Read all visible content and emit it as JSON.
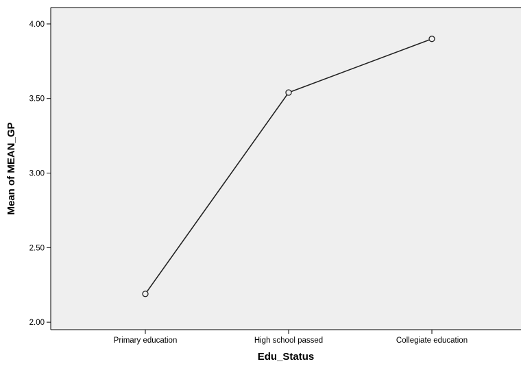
{
  "chart_data": {
    "type": "line",
    "title": "",
    "xlabel": "Edu_Status",
    "ylabel": "Mean of MEAN_GP",
    "categories": [
      "Primary education",
      "High school passed",
      "Collegiate education"
    ],
    "series": [
      {
        "values": [
          2.19,
          3.54,
          3.9
        ]
      }
    ],
    "ylim": [
      1.95,
      4.11
    ],
    "yticks": [
      2.0,
      2.5,
      3.0,
      3.5,
      4.0
    ],
    "ytick_labels": [
      "2.00",
      "2.50",
      "3.00",
      "3.50",
      "4.00"
    ],
    "grid": false,
    "legend": "none",
    "marker": "open-circle",
    "colors": {
      "plot_background": "#efefef",
      "line": "#222222",
      "axis": "#000000"
    }
  }
}
